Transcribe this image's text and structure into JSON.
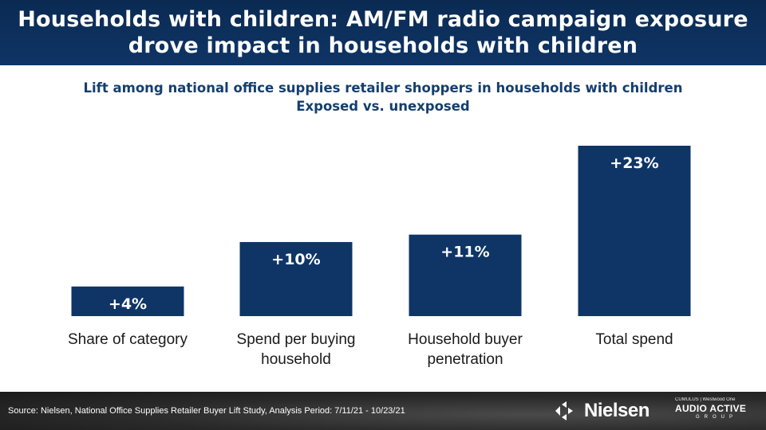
{
  "header": {
    "title_line1": "Households with children: AM/FM radio campaign exposure",
    "title_line2": "drove impact in households with children"
  },
  "subtitle": {
    "line1": "Lift among national office supplies retailer shoppers in households with children",
    "line2": "Exposed vs. unexposed"
  },
  "chart_data": {
    "type": "bar",
    "title": "Lift among national office supplies retailer shoppers in households with children",
    "subtitle": "Exposed vs. unexposed",
    "categories": [
      "Share of category",
      "Spend per buying household",
      "Household buyer penetration",
      "Total spend"
    ],
    "category_lines": [
      [
        "Share of category"
      ],
      [
        "Spend per buying",
        "household"
      ],
      [
        "Household buyer",
        "penetration"
      ],
      [
        "Total spend"
      ]
    ],
    "values": [
      4,
      10,
      11,
      23
    ],
    "data_labels": [
      "+4%",
      "+10%",
      "+11%",
      "+23%"
    ],
    "unit": "%",
    "ylim": [
      0,
      23
    ],
    "bar_color": "#0f3566",
    "label_color": "#ffffff",
    "grid": false,
    "legend": "none"
  },
  "footer": {
    "source": "Source: Nielsen, National Office Supplies Retailer Buyer Lift Study, Analysis Period: 7/11/21 - 10/23/21",
    "nielsen_logo": "Nielsen",
    "aag_top": "CUMULUS | Westwood One",
    "aag_main": "AUDIO ACTIVE",
    "aag_group": "GROUP"
  },
  "colors": {
    "header_bg": "#0f3566",
    "subtitle_text": "#143f6e",
    "footer_bg": "#2a2a2a"
  }
}
